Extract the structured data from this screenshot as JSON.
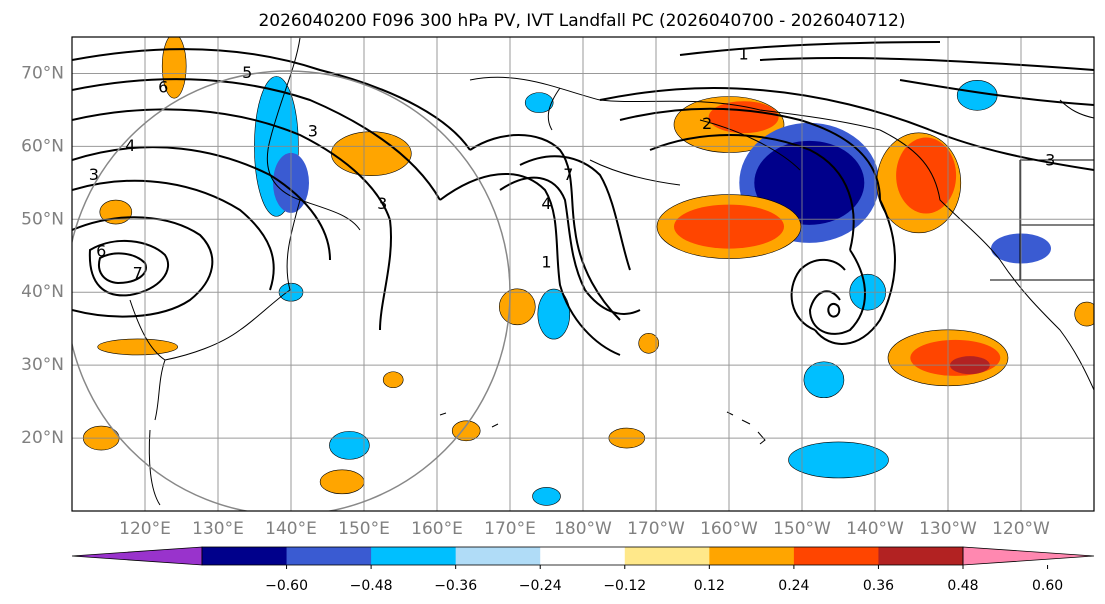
{
  "title": "2026040200 F096 300 hPa PV, IVT Landfall PC (2026040700 - 2026040712)",
  "map": {
    "lat_ticks": [
      {
        "value": 70,
        "label": "70°N"
      },
      {
        "value": 60,
        "label": "60°N"
      },
      {
        "value": 50,
        "label": "50°N"
      },
      {
        "value": 40,
        "label": "40°N"
      },
      {
        "value": 30,
        "label": "30°N"
      },
      {
        "value": 20,
        "label": "20°N"
      }
    ],
    "lon_ticks": [
      {
        "value": 120,
        "label": "120°E"
      },
      {
        "value": 130,
        "label": "130°E"
      },
      {
        "value": 140,
        "label": "140°E"
      },
      {
        "value": 150,
        "label": "150°E"
      },
      {
        "value": 160,
        "label": "160°E"
      },
      {
        "value": 170,
        "label": "170°E"
      },
      {
        "value": 180,
        "label": "180°W"
      },
      {
        "value": 190,
        "label": "170°W"
      },
      {
        "value": 200,
        "label": "160°W"
      },
      {
        "value": 210,
        "label": "150°W"
      },
      {
        "value": 220,
        "label": "140°W"
      },
      {
        "value": 230,
        "label": "130°W"
      },
      {
        "value": 240,
        "label": "120°W"
      }
    ],
    "lon_range": [
      110,
      250
    ],
    "lat_range": [
      10,
      75
    ],
    "contour_labels": [
      {
        "text": "1",
        "lon": 202,
        "lat": 72.5
      },
      {
        "text": "2",
        "lon": 197,
        "lat": 63
      },
      {
        "text": "3",
        "lon": 152.5,
        "lat": 52
      },
      {
        "text": "3",
        "lon": 143,
        "lat": 62
      },
      {
        "text": "4",
        "lon": 118,
        "lat": 60
      },
      {
        "text": "3",
        "lon": 113,
        "lat": 56
      },
      {
        "text": "6",
        "lon": 114,
        "lat": 45.5
      },
      {
        "text": "7",
        "lon": 119,
        "lat": 42.5
      },
      {
        "text": "5",
        "lon": 134,
        "lat": 70
      },
      {
        "text": "6",
        "lon": 122.5,
        "lat": 68
      },
      {
        "text": "3",
        "lon": 244,
        "lat": 58
      },
      {
        "text": "7",
        "lon": 178,
        "lat": 56
      },
      {
        "text": "4",
        "lon": 175,
        "lat": 52
      },
      {
        "text": "1",
        "lon": 175,
        "lat": 44
      }
    ]
  },
  "colorbar": {
    "colors": [
      "#9933cc",
      "#00008b",
      "#3a5bd2",
      "#00bfff",
      "#b0dcf7",
      "#ffffff",
      "#ffe88a",
      "#ffa500",
      "#ff4500",
      "#b22222",
      "#ff88b0"
    ],
    "tick_labels": [
      "−0.60",
      "−0.48",
      "−0.36",
      "−0.24",
      "−0.12",
      "0.12",
      "0.24",
      "0.36",
      "0.48",
      "0.60"
    ]
  },
  "anomalies": [
    {
      "lon": 124,
      "lat": 71,
      "rx": 12,
      "ry": 32,
      "color": "orange"
    },
    {
      "lon": 138,
      "lat": 60,
      "rx": 22,
      "ry": 70,
      "color": "lightblue"
    },
    {
      "lon": 140,
      "lat": 55,
      "rx": 18,
      "ry": 30,
      "color": "blue"
    },
    {
      "lon": 151,
      "lat": 59,
      "rx": 40,
      "ry": 22,
      "color": "orange"
    },
    {
      "lon": 200,
      "lat": 63,
      "rx": 55,
      "ry": 28,
      "color": "orange"
    },
    {
      "lon": 202,
      "lat": 64,
      "rx": 35,
      "ry": 16,
      "color": "red"
    },
    {
      "lon": 211,
      "lat": 55,
      "rx": 70,
      "ry": 60,
      "color": "blue"
    },
    {
      "lon": 211,
      "lat": 55,
      "rx": 55,
      "ry": 42,
      "color": "navy"
    },
    {
      "lon": 226,
      "lat": 55,
      "rx": 42,
      "ry": 50,
      "color": "orange"
    },
    {
      "lon": 227,
      "lat": 56,
      "rx": 30,
      "ry": 38,
      "color": "red"
    },
    {
      "lon": 200,
      "lat": 49,
      "rx": 72,
      "ry": 32,
      "color": "orange"
    },
    {
      "lon": 200,
      "lat": 49,
      "rx": 55,
      "ry": 22,
      "color": "red"
    },
    {
      "lon": 230,
      "lat": 31,
      "rx": 60,
      "ry": 28,
      "color": "orange"
    },
    {
      "lon": 231,
      "lat": 31,
      "rx": 45,
      "ry": 18,
      "color": "red"
    },
    {
      "lon": 233,
      "lat": 30,
      "rx": 20,
      "ry": 9,
      "color": "darkred"
    },
    {
      "lon": 215,
      "lat": 17,
      "rx": 50,
      "ry": 18,
      "color": "lightblue"
    },
    {
      "lon": 148,
      "lat": 19,
      "rx": 20,
      "ry": 14,
      "color": "lightblue"
    },
    {
      "lon": 147,
      "lat": 14,
      "rx": 22,
      "ry": 12,
      "color": "orange"
    },
    {
      "lon": 114,
      "lat": 20,
      "rx": 18,
      "ry": 12,
      "color": "orange"
    },
    {
      "lon": 171,
      "lat": 38,
      "rx": 18,
      "ry": 18,
      "color": "orange"
    },
    {
      "lon": 164,
      "lat": 21,
      "rx": 14,
      "ry": 10,
      "color": "orange"
    },
    {
      "lon": 186,
      "lat": 20,
      "rx": 18,
      "ry": 10,
      "color": "orange"
    },
    {
      "lon": 176,
      "lat": 37,
      "rx": 16,
      "ry": 25,
      "color": "lightblue"
    },
    {
      "lon": 213,
      "lat": 28,
      "rx": 20,
      "ry": 18,
      "color": "lightblue"
    },
    {
      "lon": 219,
      "lat": 40,
      "rx": 18,
      "ry": 18,
      "color": "lightblue"
    },
    {
      "lon": 240,
      "lat": 46,
      "rx": 30,
      "ry": 15,
      "color": "blue"
    },
    {
      "lon": 119,
      "lat": 32.5,
      "rx": 40,
      "ry": 8,
      "color": "orange"
    },
    {
      "lon": 175,
      "lat": 12,
      "rx": 14,
      "ry": 9,
      "color": "lightblue"
    },
    {
      "lon": 140,
      "lat": 40,
      "rx": 12,
      "ry": 9,
      "color": "lightblue"
    },
    {
      "lon": 116,
      "lat": 51,
      "rx": 16,
      "ry": 12,
      "color": "orange"
    },
    {
      "lon": 249,
      "lat": 37,
      "rx": 12,
      "ry": 12,
      "color": "orange"
    },
    {
      "lon": 154,
      "lat": 28,
      "rx": 10,
      "ry": 8,
      "color": "orange"
    },
    {
      "lon": 234,
      "lat": 67,
      "rx": 20,
      "ry": 15,
      "color": "lightblue"
    },
    {
      "lon": 189,
      "lat": 33,
      "rx": 10,
      "ry": 10,
      "color": "orange"
    },
    {
      "lon": 174,
      "lat": 66,
      "rx": 14,
      "ry": 10,
      "color": "lightblue"
    }
  ]
}
